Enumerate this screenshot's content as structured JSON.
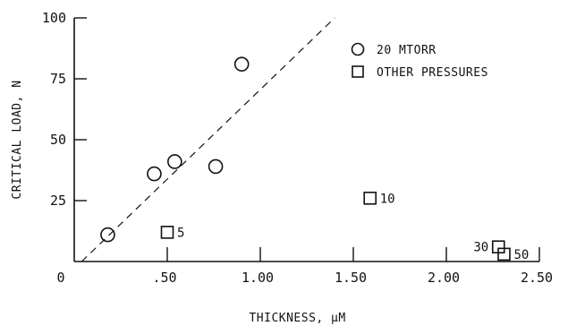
{
  "chart_data": {
    "type": "scatter",
    "title": "",
    "xlabel": "THICKNESS, µM",
    "ylabel": "CRITICAL LOAD, N",
    "xlim": [
      0,
      2.5
    ],
    "ylim": [
      0,
      100
    ],
    "x_ticks": [
      {
        "value": 0,
        "label": "0"
      },
      {
        "value": 0.5,
        "label": ".50"
      },
      {
        "value": 1.0,
        "label": "1.00"
      },
      {
        "value": 1.5,
        "label": "1.50"
      },
      {
        "value": 2.0,
        "label": "2.00"
      },
      {
        "value": 2.5,
        "label": "2.50"
      }
    ],
    "y_ticks": [
      {
        "value": 25,
        "label": "25"
      },
      {
        "value": 50,
        "label": "50"
      },
      {
        "value": 75,
        "label": "75"
      },
      {
        "value": 100,
        "label": "100"
      }
    ],
    "grid": false,
    "legend_position": "top-right",
    "series": [
      {
        "name": "20 MTORR",
        "marker": "circle",
        "points": [
          {
            "x": 0.18,
            "y": 11
          },
          {
            "x": 0.43,
            "y": 36
          },
          {
            "x": 0.54,
            "y": 41
          },
          {
            "x": 0.76,
            "y": 39
          },
          {
            "x": 0.9,
            "y": 81
          }
        ]
      },
      {
        "name": "OTHER PRESSURES",
        "marker": "square",
        "points": [
          {
            "x": 0.5,
            "y": 12,
            "label": "5"
          },
          {
            "x": 1.59,
            "y": 26,
            "label": "10"
          },
          {
            "x": 2.28,
            "y": 6,
            "label": "30"
          },
          {
            "x": 2.31,
            "y": 3,
            "label": "50"
          }
        ]
      }
    ],
    "trend_line": {
      "style": "dashed",
      "from": [
        0.04,
        0
      ],
      "to": [
        1.4,
        100
      ]
    }
  }
}
